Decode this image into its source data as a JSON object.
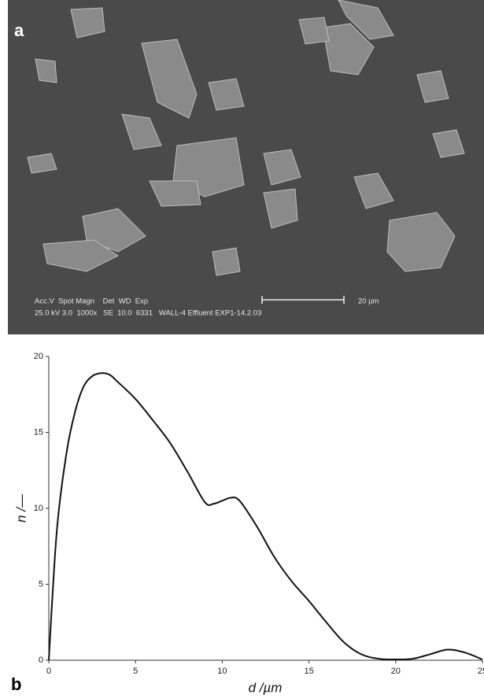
{
  "image": {
    "panel_label": "a",
    "info_line_1": "Acc.V  Spot Magn    Det  WD  Exp",
    "info_line_2": "25.0 kV 3.0  1000x   SE  10.0  6331   WALL-4 Effluent EXP1-14.2.03",
    "scale_bar": "20 µm"
  },
  "chart_data": {
    "type": "line",
    "panel_label": "b",
    "x_label": "d /µm",
    "y_label": "n /—",
    "x": [
      0,
      0.2,
      0.5,
      1,
      1.5,
      2,
      2.5,
      3,
      3.5,
      4,
      5,
      6,
      7,
      8,
      9,
      9.5,
      10,
      10.5,
      11,
      12,
      13,
      14,
      15,
      16,
      17,
      18,
      19,
      20,
      21,
      22,
      23,
      24,
      25
    ],
    "series": [
      {
        "name": "n",
        "color": "#111111",
        "values": [
          0,
          4,
          9,
          13.5,
          16.3,
          18,
          18.7,
          18.9,
          18.8,
          18.3,
          17.2,
          15.8,
          14.3,
          12.4,
          10.4,
          10.3,
          10.5,
          10.7,
          10.5,
          8.8,
          6.8,
          5.2,
          3.9,
          2.5,
          1.2,
          0.4,
          0.1,
          0.05,
          0.1,
          0.4,
          0.7,
          0.5,
          0.05
        ]
      }
    ],
    "xlim": [
      0,
      25
    ],
    "ylim": [
      0,
      20
    ],
    "xticks": [
      0,
      5,
      10,
      15,
      20,
      25
    ],
    "yticks": [
      0,
      5,
      10,
      15,
      20
    ]
  }
}
